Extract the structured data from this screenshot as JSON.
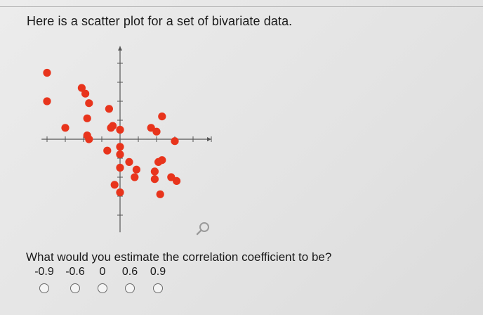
{
  "prompt": "Here is a scatter plot for a set of bivariate data.",
  "question": "What would you estimate the correlation coefficient to be?",
  "options": [
    {
      "label": "-0.9"
    },
    {
      "label": "-0.6"
    },
    {
      "label": "0"
    },
    {
      "label": "0.6"
    },
    {
      "label": "0.9"
    }
  ],
  "icons": {
    "zoom": "magnifier-icon"
  },
  "colors": {
    "point": "#e8341c",
    "axis": "#555555"
  },
  "chart_data": {
    "type": "scatter",
    "title": "",
    "xlabel": "",
    "ylabel": "",
    "xlim": [
      -5,
      5
    ],
    "ylim": [
      -5,
      5
    ],
    "grid": false,
    "points": [
      [
        -4.0,
        3.5
      ],
      [
        -4.0,
        2.0
      ],
      [
        -3.0,
        0.6
      ],
      [
        -2.1,
        2.7
      ],
      [
        -1.9,
        2.4
      ],
      [
        -1.7,
        1.9
      ],
      [
        -1.8,
        1.1
      ],
      [
        -1.8,
        0.2
      ],
      [
        -1.7,
        0.0
      ],
      [
        -0.6,
        1.6
      ],
      [
        -0.5,
        0.6
      ],
      [
        -0.4,
        0.7
      ],
      [
        0.0,
        0.5
      ],
      [
        0.0,
        -0.4
      ],
      [
        0.0,
        -0.8
      ],
      [
        0.0,
        -1.5
      ],
      [
        0.0,
        -2.8
      ],
      [
        -0.3,
        -2.4
      ],
      [
        -0.7,
        -0.6
      ],
      [
        0.5,
        -1.2
      ],
      [
        0.9,
        -1.6
      ],
      [
        0.8,
        -2.0
      ],
      [
        1.7,
        0.6
      ],
      [
        2.0,
        0.4
      ],
      [
        2.3,
        1.2
      ],
      [
        2.1,
        -1.2
      ],
      [
        2.3,
        -1.1
      ],
      [
        1.9,
        -1.7
      ],
      [
        1.9,
        -2.1
      ],
      [
        2.2,
        -2.9
      ],
      [
        2.8,
        -2.0
      ],
      [
        3.1,
        -2.2
      ],
      [
        3.0,
        -0.1
      ]
    ]
  }
}
